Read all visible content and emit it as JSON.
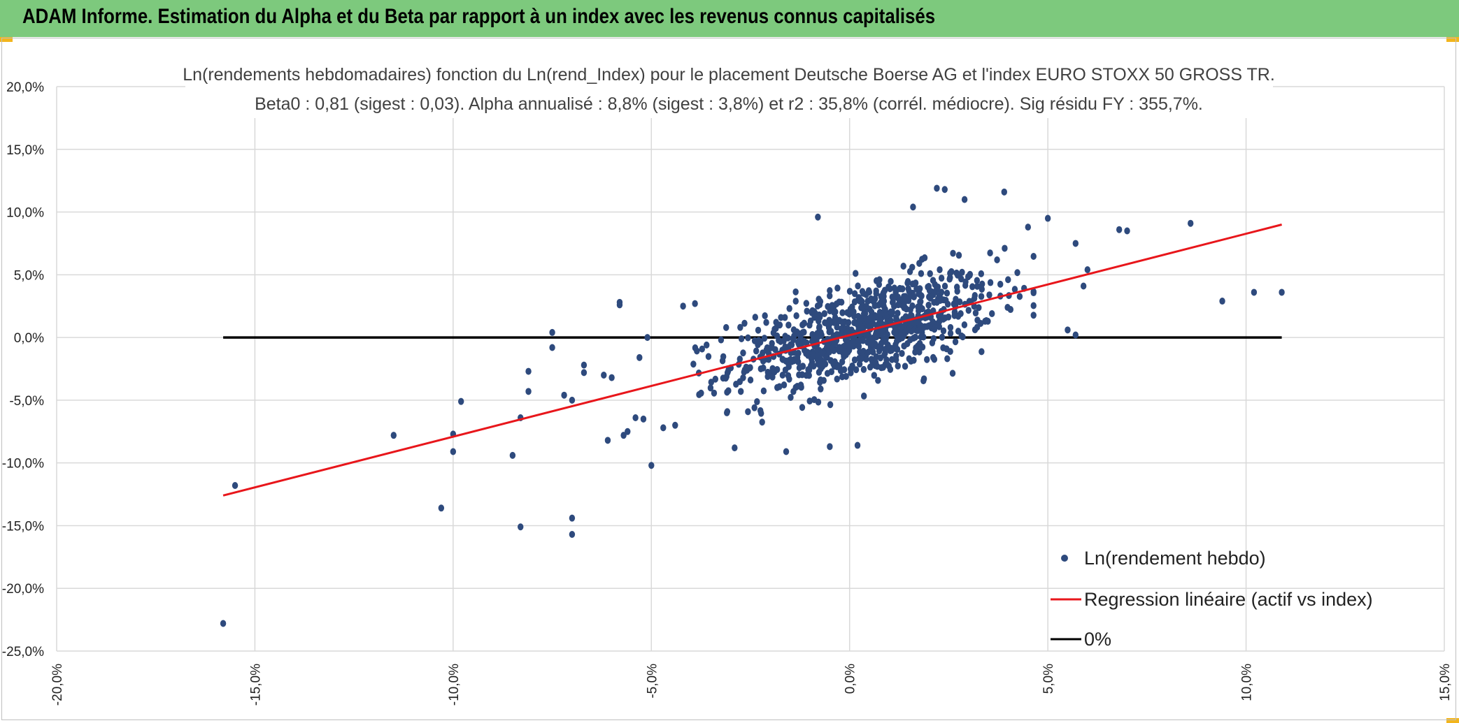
{
  "header": {
    "title": "ADAM Informe. Estimation du Alpha et du Beta par rapport à un index avec les revenus connus capitalisés",
    "background_color": "#7dc97d",
    "accent_color": "#f2b51d"
  },
  "chart_data": {
    "type": "scatter",
    "title": "Ln(rendements hebdomadaires) fonction du Ln(rend_Index) pour le placement Deutsche Boerse AG et l'index EURO STOXX 50 GROSS TR.",
    "subtitle": "Beta0 : 0,81 (sigest : 0,03). Alpha annualisé : 8,8% (sigest : 3,8%) et r2 : 35,8% (corrél. médiocre). Sig résidu FY : 355,7%.",
    "xlabel": "",
    "ylabel": "",
    "xlim": [
      -20,
      15
    ],
    "ylim": [
      -25,
      20
    ],
    "x_ticks": [
      -20,
      -15,
      -10,
      -5,
      0,
      5,
      10,
      15
    ],
    "y_ticks": [
      20,
      15,
      10,
      5,
      0,
      -5,
      -10,
      -15,
      -20,
      -25
    ],
    "x_tick_labels": [
      "-20,0%",
      "-15,0%",
      "-10,0%",
      "-5,0%",
      "0,0%",
      "5,0%",
      "10,0%",
      "15,0%"
    ],
    "y_tick_labels": [
      "20,0%",
      "15,0%",
      "10,0%",
      "5,0%",
      "0,0%",
      "-5,0%",
      "-10,0%",
      "-15,0%",
      "-20,0%",
      "-25,0%"
    ],
    "grid": true,
    "legend_position": "bottom-right",
    "series": [
      {
        "name": "Ln(rendement hebdo)",
        "kind": "scatter",
        "color": "#2e4a7d",
        "outliers": [
          [
            -15.8,
            -22.8
          ],
          [
            -15.5,
            -11.8
          ],
          [
            -11.5,
            -7.8
          ],
          [
            -10.3,
            -13.6
          ],
          [
            -10.0,
            -7.7
          ],
          [
            -10.0,
            -9.1
          ],
          [
            -9.8,
            -5.1
          ],
          [
            -8.5,
            -9.4
          ],
          [
            -8.3,
            -15.1
          ],
          [
            -8.3,
            -6.4
          ],
          [
            -8.1,
            -4.3
          ],
          [
            -8.1,
            -2.7
          ],
          [
            -7.5,
            0.4
          ],
          [
            -7.5,
            -0.8
          ],
          [
            -7.2,
            -4.6
          ],
          [
            -7.0,
            -14.4
          ],
          [
            -7.0,
            -15.7
          ],
          [
            -7.0,
            -5.0
          ],
          [
            -6.7,
            -2.8
          ],
          [
            -6.7,
            -2.2
          ],
          [
            -6.2,
            -3.0
          ],
          [
            -6.1,
            -8.2
          ],
          [
            -6.0,
            -3.2
          ],
          [
            -5.8,
            2.6
          ],
          [
            -5.8,
            2.8
          ],
          [
            -5.7,
            -7.8
          ],
          [
            -5.6,
            -7.5
          ],
          [
            -5.4,
            -6.4
          ],
          [
            -5.3,
            -1.6
          ],
          [
            -5.2,
            -6.5
          ],
          [
            -5.1,
            0.0
          ],
          [
            -5.0,
            -10.2
          ],
          [
            -4.7,
            -7.2
          ],
          [
            -4.4,
            -7.0
          ],
          [
            -4.2,
            2.5
          ],
          [
            -3.9,
            2.7
          ],
          [
            -0.8,
            9.6
          ],
          [
            2.2,
            11.9
          ],
          [
            2.4,
            11.8
          ],
          [
            2.9,
            11.0
          ],
          [
            3.9,
            11.6
          ],
          [
            1.6,
            10.4
          ],
          [
            4.5,
            8.8
          ],
          [
            5.0,
            9.5
          ],
          [
            5.7,
            7.5
          ],
          [
            6.8,
            8.6
          ],
          [
            7.0,
            8.5
          ],
          [
            8.6,
            9.1
          ],
          [
            9.4,
            2.9
          ],
          [
            10.2,
            3.6
          ],
          [
            10.9,
            3.6
          ],
          [
            5.5,
            0.6
          ],
          [
            5.7,
            0.2
          ],
          [
            6.0,
            5.4
          ],
          [
            5.9,
            4.1
          ],
          [
            -0.5,
            -8.7
          ],
          [
            0.2,
            -8.6
          ],
          [
            -1.6,
            -9.1
          ],
          [
            -2.9,
            -8.8
          ],
          [
            -2.4,
            -5.6
          ]
        ],
        "cloud": {
          "count": 880,
          "x_mean": 0.35,
          "x_sd": 1.65,
          "beta": 0.81,
          "intercept": 0.17,
          "residual_sd": 1.9,
          "seed": 12345
        }
      },
      {
        "name": "Regression linéaire (actif vs index)",
        "kind": "line",
        "color": "#e8161b",
        "x": [
          -15.8,
          10.9
        ],
        "y": [
          -12.6,
          9.0
        ]
      },
      {
        "name": "0%",
        "kind": "line",
        "color": "#000000",
        "x": [
          -15.8,
          10.9
        ],
        "y": [
          0,
          0
        ]
      }
    ]
  }
}
